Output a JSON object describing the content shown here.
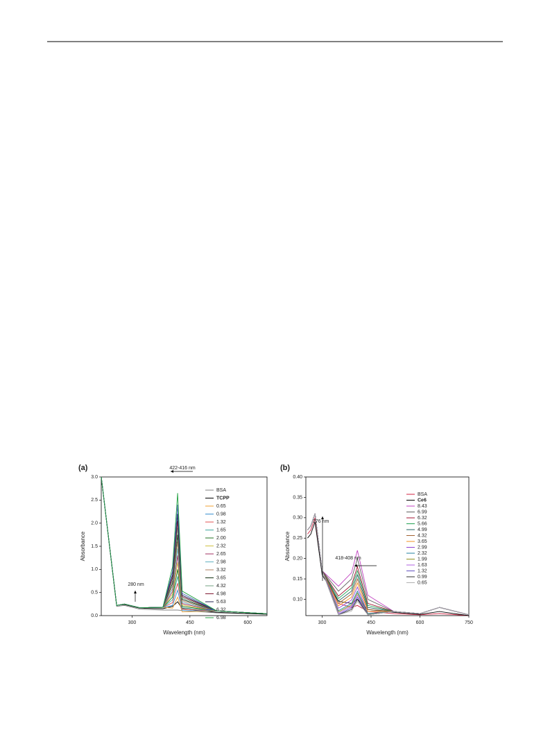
{
  "chart_data": [
    {
      "type": "line",
      "panel_label": "(a)",
      "xlabel": "Wavelength (nm)",
      "ylabel": "Absorbance",
      "annotations": [
        "422-416 nm",
        "280 nm"
      ],
      "xlim": [
        220,
        650
      ],
      "xticks": [
        300,
        450,
        600
      ],
      "ylim": [
        0,
        3
      ],
      "yticks": [
        {
          "value": 0,
          "label": "0.0"
        },
        0.5,
        {
          "value": 1,
          "label": "1.0"
        },
        1.5,
        {
          "value": 2,
          "label": "2.0"
        },
        2.5,
        {
          "value": 3,
          "label": "3.0"
        }
      ],
      "x": [
        220,
        260,
        280,
        320,
        380,
        405,
        418,
        430,
        520,
        650
      ],
      "series": [
        {
          "name": "BSA",
          "color": "#808080",
          "values": [
            3.0,
            0.2,
            0.22,
            0.14,
            0.12,
            0.12,
            0.12,
            0.11,
            0.06,
            0.03
          ]
        },
        {
          "name": "TCPP",
          "color": "#000000",
          "values": [
            3.0,
            0.22,
            0.24,
            0.16,
            0.15,
            0.2,
            0.3,
            0.15,
            0.07,
            0.03
          ]
        },
        {
          "name": "0.65",
          "color": "#f0a030",
          "values": [
            3.0,
            0.22,
            0.25,
            0.17,
            0.18,
            0.16,
            0.4,
            0.08,
            0.1,
            0.04
          ]
        },
        {
          "name": "0.98",
          "color": "#3a8fd0",
          "values": [
            3.0,
            0.22,
            0.25,
            0.17,
            0.18,
            0.22,
            0.55,
            0.11,
            0.1,
            0.04
          ]
        },
        {
          "name": "1.32",
          "color": "#e05050",
          "values": [
            3.0,
            0.22,
            0.25,
            0.17,
            0.18,
            0.28,
            0.7,
            0.14,
            0.1,
            0.04
          ]
        },
        {
          "name": "1.65",
          "color": "#40a8a0",
          "values": [
            3.0,
            0.22,
            0.25,
            0.17,
            0.18,
            0.34,
            0.85,
            0.17,
            0.1,
            0.04
          ]
        },
        {
          "name": "2.00",
          "color": "#207020",
          "values": [
            3.0,
            0.22,
            0.25,
            0.17,
            0.18,
            0.4,
            1.0,
            0.2,
            0.1,
            0.04
          ]
        },
        {
          "name": "2.32",
          "color": "#d0c040",
          "values": [
            3.0,
            0.22,
            0.25,
            0.17,
            0.18,
            0.46,
            1.15,
            0.23,
            0.1,
            0.04
          ]
        },
        {
          "name": "2.65",
          "color": "#a03060",
          "values": [
            3.0,
            0.22,
            0.25,
            0.17,
            0.18,
            0.52,
            1.3,
            0.26,
            0.1,
            0.04
          ]
        },
        {
          "name": "2.98",
          "color": "#60b0c0",
          "values": [
            3.0,
            0.22,
            0.25,
            0.17,
            0.18,
            0.58,
            1.45,
            0.29,
            0.1,
            0.04
          ]
        },
        {
          "name": "3.32",
          "color": "#b08060",
          "values": [
            3.0,
            0.22,
            0.25,
            0.17,
            0.18,
            0.64,
            1.6,
            0.32,
            0.1,
            0.04
          ]
        },
        {
          "name": "3.65",
          "color": "#103010",
          "values": [
            3.0,
            0.22,
            0.25,
            0.17,
            0.18,
            0.7,
            1.75,
            0.35,
            0.1,
            0.04
          ]
        },
        {
          "name": "4.32",
          "color": "#70a080",
          "values": [
            3.0,
            0.22,
            0.25,
            0.17,
            0.18,
            0.76,
            1.9,
            0.38,
            0.1,
            0.04
          ]
        },
        {
          "name": "4.98",
          "color": "#801830",
          "values": [
            3.0,
            0.22,
            0.25,
            0.17,
            0.18,
            0.82,
            2.05,
            0.41,
            0.1,
            0.04
          ]
        },
        {
          "name": "5.63",
          "color": "#202050",
          "values": [
            3.0,
            0.22,
            0.25,
            0.17,
            0.18,
            0.88,
            2.2,
            0.44,
            0.1,
            0.04
          ]
        },
        {
          "name": "6.32",
          "color": "#4060b0",
          "values": [
            3.0,
            0.22,
            0.25,
            0.17,
            0.18,
            0.96,
            2.4,
            0.48,
            0.1,
            0.04
          ]
        },
        {
          "name": "6.98",
          "color": "#20a040",
          "values": [
            3.0,
            0.22,
            0.25,
            0.17,
            0.18,
            1.06,
            2.65,
            0.53,
            0.1,
            0.04
          ]
        }
      ]
    },
    {
      "type": "line",
      "panel_label": "(b)",
      "xlabel": "Wavelength (nm)",
      "ylabel": "Absorbance",
      "annotations": [
        "276 nm",
        "418-408 nm"
      ],
      "xlim": [
        250,
        750
      ],
      "xticks": [
        300,
        450,
        600,
        750
      ],
      "ylim": [
        0.06,
        0.4
      ],
      "yticks": [
        {
          "value": 0.1,
          "label": "0.10"
        },
        0.15,
        {
          "value": 0.2,
          "label": "0.20"
        },
        0.25,
        {
          "value": 0.3,
          "label": "0.30"
        },
        0.35,
        {
          "value": 0.4,
          "label": "0.40"
        }
      ],
      "x": [
        255,
        265,
        278,
        300,
        350,
        390,
        408,
        440,
        520,
        600,
        660,
        750
      ],
      "series": [
        {
          "name": "BSA",
          "color": "#d02040",
          "values": [
            0.26,
            0.27,
            0.3,
            0.17,
            0.09,
            0.08,
            0.085,
            0.07,
            0.065,
            0.062,
            0.065,
            0.06
          ]
        },
        {
          "name": "Ce6",
          "color": "#000000",
          "values": [
            0.25,
            0.26,
            0.29,
            0.16,
            0.095,
            0.09,
            0.1,
            0.075,
            0.068,
            0.063,
            0.07,
            0.06
          ]
        },
        {
          "name": "8.43",
          "color": "#c040c0",
          "values": [
            0.27,
            0.28,
            0.31,
            0.17,
            0.132,
            0.165,
            0.22,
            0.11,
            0.07,
            0.065,
            0.08,
            0.062
          ]
        },
        {
          "name": "6.99",
          "color": "#606060",
          "values": [
            0.27,
            0.28,
            0.31,
            0.17,
            0.12,
            0.15,
            0.2,
            0.1,
            0.07,
            0.065,
            0.08,
            0.062
          ]
        },
        {
          "name": "6.32",
          "color": "#a01030",
          "values": [
            0.27,
            0.28,
            0.31,
            0.17,
            0.108,
            0.135,
            0.18,
            0.09,
            0.07,
            0.065,
            0.08,
            0.062
          ]
        },
        {
          "name": "5.66",
          "color": "#20a050",
          "values": [
            0.27,
            0.28,
            0.31,
            0.17,
            0.102,
            0.128,
            0.17,
            0.085,
            0.07,
            0.065,
            0.08,
            0.062
          ]
        },
        {
          "name": "4.99",
          "color": "#206060",
          "values": [
            0.27,
            0.28,
            0.31,
            0.17,
            0.096,
            0.12,
            0.16,
            0.08,
            0.07,
            0.065,
            0.08,
            0.062
          ]
        },
        {
          "name": "4.32",
          "color": "#a06030",
          "values": [
            0.27,
            0.28,
            0.31,
            0.17,
            0.09,
            0.113,
            0.15,
            0.075,
            0.07,
            0.065,
            0.08,
            0.062
          ]
        },
        {
          "name": "3.65",
          "color": "#f09020",
          "values": [
            0.27,
            0.28,
            0.31,
            0.17,
            0.084,
            0.105,
            0.14,
            0.07,
            0.07,
            0.065,
            0.08,
            0.062
          ]
        },
        {
          "name": "2.99",
          "color": "#9040d0",
          "values": [
            0.27,
            0.28,
            0.31,
            0.17,
            0.078,
            0.098,
            0.13,
            0.065,
            0.07,
            0.065,
            0.08,
            0.062
          ]
        },
        {
          "name": "2.32",
          "color": "#2080a0",
          "values": [
            0.27,
            0.28,
            0.31,
            0.17,
            0.072,
            0.09,
            0.12,
            0.065,
            0.07,
            0.065,
            0.08,
            0.062
          ]
        },
        {
          "name": "1.99",
          "color": "#909020",
          "values": [
            0.27,
            0.28,
            0.31,
            0.17,
            0.069,
            0.086,
            0.115,
            0.063,
            0.07,
            0.065,
            0.08,
            0.062
          ]
        },
        {
          "name": "1.63",
          "color": "#b060e0",
          "values": [
            0.27,
            0.28,
            0.31,
            0.17,
            0.066,
            0.083,
            0.11,
            0.062,
            0.07,
            0.065,
            0.08,
            0.062
          ]
        },
        {
          "name": "1.32",
          "color": "#6050c0",
          "values": [
            0.27,
            0.28,
            0.31,
            0.17,
            0.063,
            0.079,
            0.105,
            0.062,
            0.07,
            0.065,
            0.08,
            0.062
          ]
        },
        {
          "name": "0.99",
          "color": "#303030",
          "values": [
            0.27,
            0.28,
            0.31,
            0.17,
            0.062,
            0.075,
            0.1,
            0.062,
            0.07,
            0.065,
            0.08,
            0.062
          ]
        },
        {
          "name": "0.65",
          "color": "#b0b0b0",
          "values": [
            0.27,
            0.28,
            0.31,
            0.17,
            0.062,
            0.071,
            0.095,
            0.062,
            0.07,
            0.065,
            0.08,
            0.062
          ]
        }
      ]
    }
  ]
}
